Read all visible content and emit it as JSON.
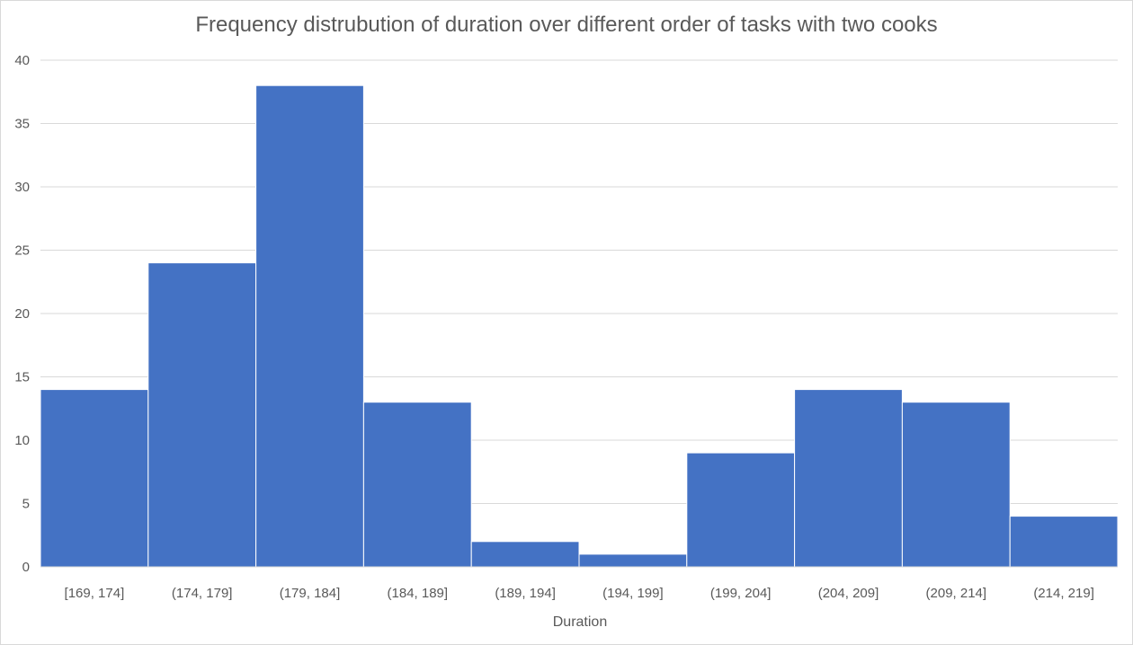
{
  "chart_data": {
    "type": "bar",
    "title": "Frequency distrubution of duration over different order of tasks with two cooks",
    "xlabel": "Duration",
    "ylabel": "",
    "categories": [
      "[169, 174]",
      "(174, 179]",
      "(179, 184]",
      "(184, 189]",
      "(189, 194]",
      "(194, 199]",
      "(199, 204]",
      "(204, 209]",
      "(209, 214]",
      "(214, 219]"
    ],
    "values": [
      14,
      24,
      38,
      13,
      2,
      1,
      9,
      14,
      13,
      4
    ],
    "ylim": [
      0,
      40
    ],
    "yticks": [
      0,
      5,
      10,
      15,
      20,
      25,
      30,
      35,
      40
    ],
    "grid": true,
    "legend": "none",
    "bar_color": "#4472c4",
    "grid_color": "#d9d9d9",
    "text_color": "#595959"
  }
}
